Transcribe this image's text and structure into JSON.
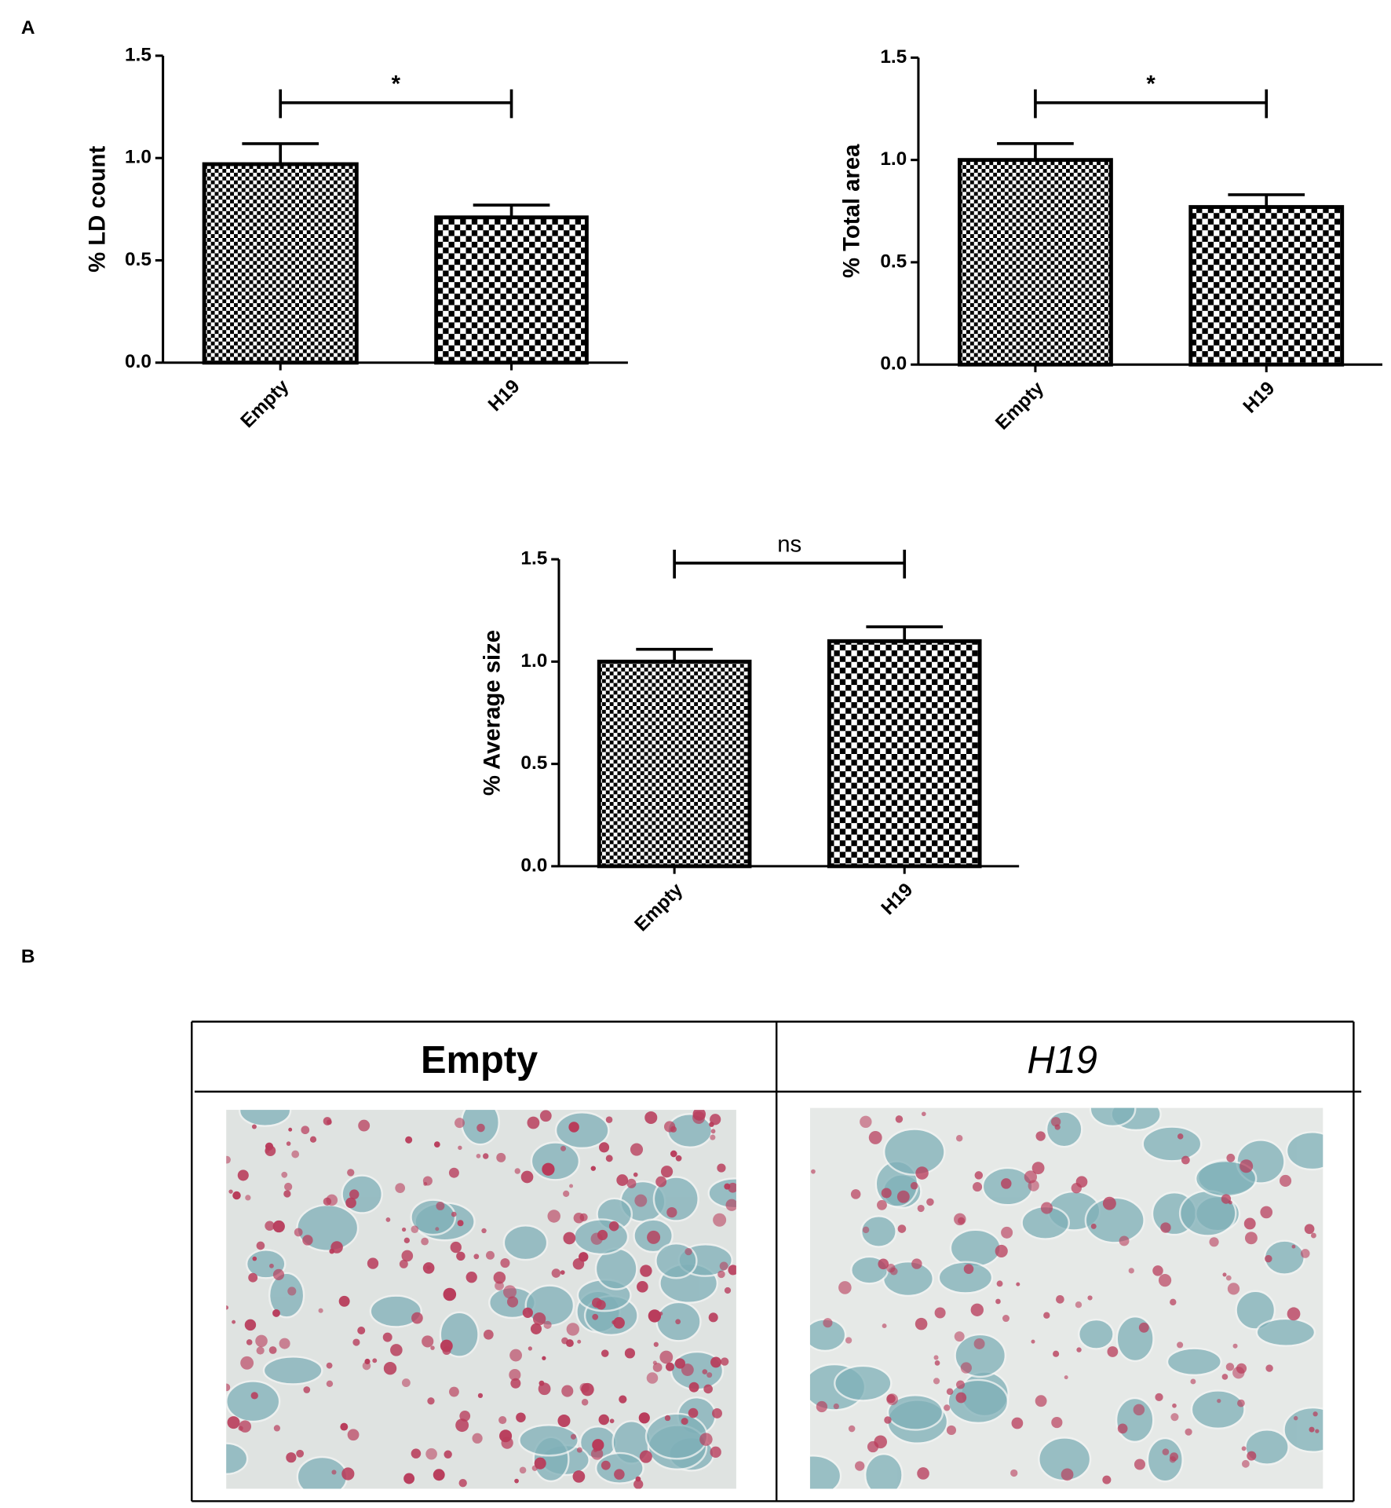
{
  "panel_labels": [
    "A",
    "B"
  ],
  "chart_data": [
    {
      "type": "bar",
      "y_label": "% LD count",
      "categories": [
        "Empty",
        "H19"
      ],
      "values": [
        0.97,
        0.71
      ],
      "errors": [
        0.1,
        0.06
      ],
      "color": "#000000",
      "ylim": [
        0,
        1.5
      ],
      "yticks": [
        {
          "value": 0,
          "label": "0.0"
        },
        {
          "value": 0.5,
          "label": "0.5"
        },
        {
          "value": 1,
          "label": "1.0"
        },
        {
          "value": 1.5,
          "label": "1.5"
        }
      ],
      "annotation": "*"
    },
    {
      "type": "bar",
      "y_label": "% Total area",
      "categories": [
        "Empty",
        "H19"
      ],
      "values": [
        1.0,
        0.77
      ],
      "errors": [
        0.08,
        0.06
      ],
      "color": "#000000",
      "ylim": [
        0,
        1.5
      ],
      "yticks": [
        {
          "value": 0,
          "label": "0.0"
        },
        {
          "value": 0.5,
          "label": "0.5"
        },
        {
          "value": 1,
          "label": "1.0"
        },
        {
          "value": 1.5,
          "label": "1.5"
        }
      ],
      "annotation": "*"
    },
    {
      "type": "bar",
      "y_label": "% Average size",
      "categories": [
        "Empty",
        "H19"
      ],
      "values": [
        1.0,
        1.1
      ],
      "errors": [
        0.06,
        0.07
      ],
      "color": "#000000",
      "ylim": [
        0,
        1.5
      ],
      "yticks": [
        {
          "value": 0,
          "label": "0.0"
        },
        {
          "value": 0.5,
          "label": "0.5"
        },
        {
          "value": 1,
          "label": "1.0"
        },
        {
          "value": 1.5,
          "label": "1.5"
        }
      ],
      "annotation": "ns"
    }
  ],
  "micrograph_table": {
    "headers": [
      "Empty",
      "H19"
    ]
  }
}
